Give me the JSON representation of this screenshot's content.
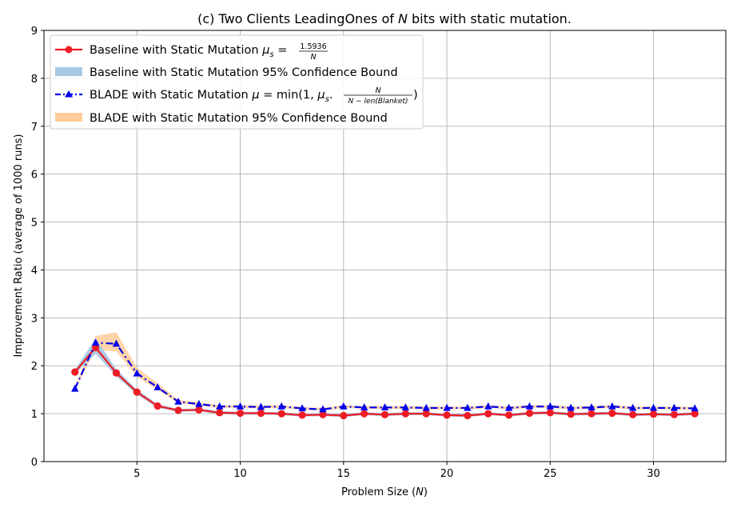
{
  "chart_data": {
    "type": "line",
    "title": "(c) Two Clients LeadingOnes of N bits with static mutation.",
    "xlabel": "Problem Size (N)",
    "ylabel": "Improvement Ratio (average of 1000 runs)",
    "xlim": [
      0.5,
      33.5
    ],
    "ylim": [
      0,
      9
    ],
    "xticks": [
      5,
      10,
      15,
      20,
      25,
      30
    ],
    "yticks": [
      0,
      1,
      2,
      3,
      4,
      5,
      6,
      7,
      8,
      9
    ],
    "grid": true,
    "legend_position": "top-left",
    "x": [
      2,
      3,
      4,
      5,
      6,
      7,
      8,
      9,
      10,
      11,
      12,
      13,
      14,
      15,
      16,
      17,
      18,
      19,
      20,
      21,
      22,
      23,
      24,
      25,
      26,
      27,
      28,
      29,
      30,
      31,
      32
    ],
    "series": [
      {
        "name": "Baseline with Static Mutation μs = 1.5936/N",
        "color": "#ee1c25",
        "marker": "circle",
        "values": [
          1.87,
          2.38,
          1.85,
          1.45,
          1.16,
          1.07,
          1.08,
          1.02,
          1.01,
          1.01,
          1.0,
          0.97,
          0.98,
          0.96,
          1.0,
          0.98,
          1.0,
          1.0,
          0.97,
          0.96,
          1.0,
          0.97,
          1.01,
          1.02,
          0.99,
          1.0,
          1.01,
          0.98,
          0.99,
          0.98,
          1.0
        ],
        "ci_lower": [
          1.83,
          2.25,
          1.78,
          1.4,
          1.12,
          1.04,
          1.05,
          0.99,
          0.98,
          0.98,
          0.97,
          0.94,
          0.95,
          0.93,
          0.97,
          0.95,
          0.97,
          0.97,
          0.94,
          0.93,
          0.97,
          0.94,
          0.98,
          0.99,
          0.96,
          0.97,
          0.98,
          0.95,
          0.96,
          0.95,
          0.97
        ],
        "ci_upper": [
          1.92,
          2.57,
          1.93,
          1.5,
          1.2,
          1.1,
          1.11,
          1.05,
          1.04,
          1.04,
          1.03,
          1.0,
          1.01,
          0.99,
          1.03,
          1.01,
          1.03,
          1.03,
          1.0,
          0.99,
          1.03,
          1.0,
          1.04,
          1.05,
          1.02,
          1.03,
          1.04,
          1.01,
          1.02,
          1.01,
          1.03
        ]
      },
      {
        "name": "BLADE with Static Mutation μ = min(1, μs · N/(N − len(Blanket)))",
        "color": "#0000ee",
        "marker": "triangle",
        "values": [
          1.52,
          2.48,
          2.46,
          1.84,
          1.55,
          1.25,
          1.2,
          1.15,
          1.15,
          1.14,
          1.15,
          1.11,
          1.09,
          1.15,
          1.13,
          1.13,
          1.13,
          1.12,
          1.12,
          1.12,
          1.15,
          1.12,
          1.15,
          1.15,
          1.12,
          1.13,
          1.15,
          1.12,
          1.12,
          1.12,
          1.11
        ],
        "ci_lower": [
          1.5,
          2.33,
          2.3,
          1.77,
          1.5,
          1.22,
          1.17,
          1.12,
          1.12,
          1.11,
          1.12,
          1.08,
          1.06,
          1.12,
          1.1,
          1.1,
          1.1,
          1.09,
          1.09,
          1.09,
          1.12,
          1.09,
          1.12,
          1.12,
          1.09,
          1.1,
          1.12,
          1.09,
          1.09,
          1.09,
          1.08
        ],
        "ci_upper": [
          1.55,
          2.62,
          2.7,
          1.96,
          1.63,
          1.29,
          1.24,
          1.18,
          1.18,
          1.17,
          1.18,
          1.14,
          1.12,
          1.18,
          1.16,
          1.16,
          1.16,
          1.15,
          1.15,
          1.15,
          1.18,
          1.15,
          1.18,
          1.18,
          1.15,
          1.16,
          1.18,
          1.15,
          1.15,
          1.15,
          1.14
        ]
      }
    ],
    "legend": {
      "baseline_prefix": "Baseline with Static Mutation ",
      "baseline_mu": "μ",
      "baseline_sub": "s",
      "baseline_eq": " = ",
      "baseline_num": "1.5936",
      "baseline_den": "N",
      "baseline_ci": "Baseline with Static Mutation 95% Confidence Bound",
      "blade_prefix": "BLADE with Static Mutation ",
      "blade_mu": "μ",
      "blade_min": " = min(1, ",
      "blade_mus": "μ",
      "blade_mus_sub": "s",
      "blade_dot": ". ",
      "blade_num": "N",
      "blade_den": "N − len(Blanket)",
      "blade_close": ")",
      "blade_ci": "BLADE with Static Mutation 95% Confidence Bound"
    },
    "colors": {
      "baseline_band": "#a6c8e3",
      "blade_band": "#ffcc99",
      "grid": "#b0b0b0"
    }
  }
}
